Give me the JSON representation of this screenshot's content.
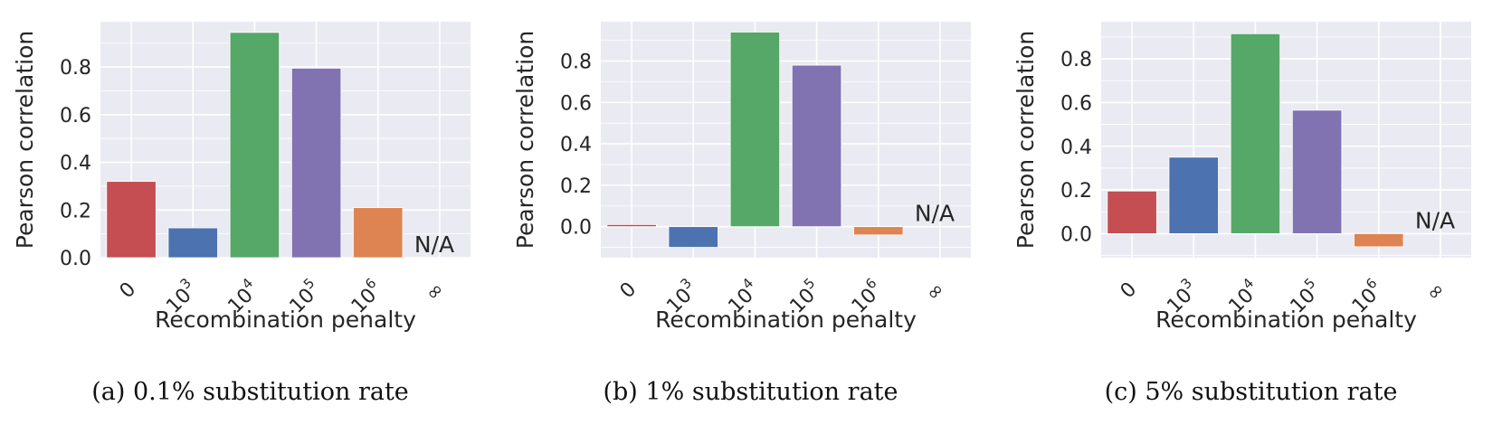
{
  "colors": {
    "background": "#eaeaf2",
    "grid": "#ffffff",
    "bars": [
      "#c44e52",
      "#4c72b0",
      "#55a868",
      "#8172b2",
      "#dd8452",
      "#937860"
    ]
  },
  "chart_data": [
    {
      "type": "bar",
      "caption": "(a) 0.1% substitution rate",
      "xlabel": "Recombination penalty",
      "ylabel": "Pearson correlation",
      "categories": [
        {
          "base": "0",
          "exp": ""
        },
        {
          "base": "10",
          "exp": "3"
        },
        {
          "base": "10",
          "exp": "4"
        },
        {
          "base": "10",
          "exp": "5"
        },
        {
          "base": "10",
          "exp": "6"
        },
        {
          "base": "∞",
          "exp": ""
        }
      ],
      "values": [
        0.32,
        0.125,
        0.945,
        0.795,
        0.21,
        null
      ],
      "na_label": "N/A",
      "ylim": [
        0,
        0.99
      ],
      "yticks": [
        0.0,
        0.2,
        0.4,
        0.6,
        0.8
      ],
      "ytick_labels": [
        "0.0",
        "0.2",
        "0.4",
        "0.6",
        "0.8"
      ]
    },
    {
      "type": "bar",
      "caption": "(b) 1% substitution rate",
      "xlabel": "Recombination penalty",
      "ylabel": "Pearson correlation",
      "categories": [
        {
          "base": "0",
          "exp": ""
        },
        {
          "base": "10",
          "exp": "3"
        },
        {
          "base": "10",
          "exp": "4"
        },
        {
          "base": "10",
          "exp": "5"
        },
        {
          "base": "10",
          "exp": "6"
        },
        {
          "base": "∞",
          "exp": ""
        }
      ],
      "values": [
        0.01,
        -0.1,
        0.94,
        0.78,
        -0.04,
        null
      ],
      "na_label": "N/A",
      "ylim": [
        -0.15,
        0.99
      ],
      "yticks": [
        0.0,
        0.2,
        0.4,
        0.6,
        0.8
      ],
      "ytick_labels": [
        "0.0",
        "0.2",
        "0.4",
        "0.6",
        "0.8"
      ]
    },
    {
      "type": "bar",
      "caption": "(c) 5% substitution rate",
      "xlabel": "Recombination penalty",
      "ylabel": "Pearson correlation",
      "categories": [
        {
          "base": "0",
          "exp": ""
        },
        {
          "base": "10",
          "exp": "3"
        },
        {
          "base": "10",
          "exp": "4"
        },
        {
          "base": "10",
          "exp": "5"
        },
        {
          "base": "10",
          "exp": "6"
        },
        {
          "base": "∞",
          "exp": ""
        }
      ],
      "values": [
        0.195,
        0.35,
        0.915,
        0.565,
        -0.06,
        null
      ],
      "na_label": "N/A",
      "ylim": [
        -0.11,
        0.97
      ],
      "yticks": [
        0.0,
        0.2,
        0.4,
        0.6,
        0.8
      ],
      "ytick_labels": [
        "0.0",
        "0.2",
        "0.4",
        "0.6",
        "0.8"
      ]
    }
  ]
}
